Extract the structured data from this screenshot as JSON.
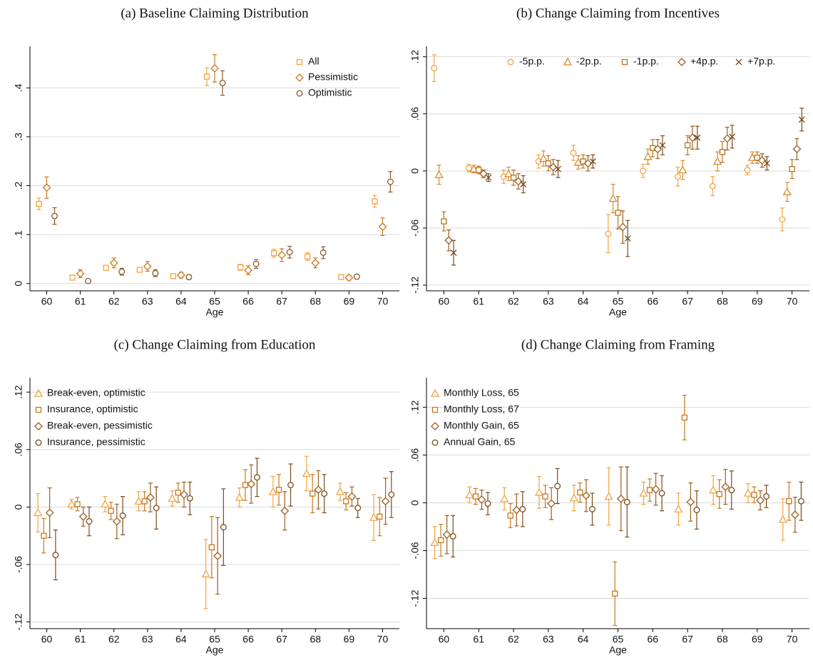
{
  "chart_data": [
    {
      "type": "errorbar",
      "title": "(a) Baseline Claiming Distribution",
      "x_label": "Age",
      "x": [
        60,
        61,
        62,
        63,
        64,
        65,
        66,
        67,
        68,
        69,
        70
      ],
      "xlim": [
        59.5,
        70.5
      ],
      "xticks": [
        60,
        61,
        62,
        63,
        64,
        65,
        66,
        67,
        68,
        69,
        70
      ],
      "ylim": [
        -0.015,
        0.485
      ],
      "yticks": [
        0,
        {
          "value": 0.1,
          "label": ".1"
        },
        {
          "value": 0.2,
          "label": ".2"
        },
        {
          "value": 0.3,
          "label": ".3"
        },
        {
          "value": 0.4,
          "label": ".4"
        }
      ],
      "grid": true,
      "legend": "top-right",
      "series": [
        {
          "name": "All",
          "color": "#f4a340",
          "marker": "square",
          "values": [
            0.163,
            0.012,
            0.032,
            0.028,
            0.015,
            0.423,
            0.033,
            0.062,
            0.055,
            0.013,
            0.168
          ],
          "errors": [
            0.012,
            0.003,
            0.005,
            0.004,
            0.003,
            0.018,
            0.006,
            0.008,
            0.008,
            0.003,
            0.012
          ]
        },
        {
          "name": "Pessimistic",
          "color": "#c8781e",
          "marker": "diamond",
          "values": [
            0.196,
            0.02,
            0.042,
            0.035,
            0.017,
            0.44,
            0.027,
            0.058,
            0.042,
            0.012,
            0.116
          ],
          "errors": [
            0.022,
            0.008,
            0.01,
            0.01,
            0.006,
            0.028,
            0.009,
            0.013,
            0.01,
            0.005,
            0.018
          ]
        },
        {
          "name": "Optimistic",
          "color": "#8c5a28",
          "marker": "circle",
          "values": [
            0.138,
            0.005,
            0.024,
            0.021,
            0.013,
            0.41,
            0.04,
            0.064,
            0.063,
            0.014,
            0.208
          ],
          "errors": [
            0.017,
            0.003,
            0.007,
            0.007,
            0.005,
            0.025,
            0.009,
            0.012,
            0.012,
            0.005,
            0.021
          ]
        }
      ]
    },
    {
      "type": "errorbar",
      "title": "(b) Change Claiming from Incentives",
      "x_label": "Age",
      "x": [
        60,
        61,
        62,
        63,
        64,
        65,
        66,
        67,
        68,
        69,
        70
      ],
      "xlim": [
        59.5,
        70.5
      ],
      "xticks": [
        60,
        61,
        62,
        63,
        64,
        65,
        66,
        67,
        68,
        69,
        70
      ],
      "ylim": [
        -0.126,
        0.131
      ],
      "yticks": [
        {
          "value": -0.12,
          "label": "-.12"
        },
        {
          "value": -0.06,
          "label": "-.06"
        },
        0,
        {
          "value": 0.06,
          "label": ".06"
        },
        {
          "value": 0.12,
          "label": ".12"
        }
      ],
      "grid": true,
      "legend": "top",
      "series": [
        {
          "name": "-5p.p.",
          "color": "#f4a340",
          "marker": "circle",
          "values": [
            0.108,
            0.003,
            -0.006,
            0.01,
            0.019,
            -0.066,
            0,
            -0.006,
            -0.016,
            0.001,
            -0.051
          ],
          "errors": [
            0.014,
            0.004,
            0.007,
            0.007,
            0.008,
            0.02,
            0.007,
            0.01,
            0.01,
            0.005,
            0.012
          ]
        },
        {
          "name": "-2p.p.",
          "color": "#d98a2a",
          "marker": "triangle",
          "values": [
            -0.004,
            0.002,
            -0.003,
            0.013,
            0.009,
            -0.029,
            0.015,
            0.001,
            0.01,
            0.014,
            -0.022
          ],
          "errors": [
            0.01,
            0.004,
            0.007,
            0.008,
            0.007,
            0.015,
            0.008,
            0.01,
            0.01,
            0.006,
            0.01
          ]
        },
        {
          "name": "-1p.p.",
          "color": "#b8731e",
          "marker": "square",
          "values": [
            -0.053,
            0.001,
            -0.007,
            0.008,
            0.01,
            -0.044,
            0.024,
            0.027,
            0.02,
            0.014,
            0.002
          ],
          "errors": [
            0.01,
            0.004,
            0.008,
            0.008,
            0.007,
            0.017,
            0.009,
            0.01,
            0.011,
            0.006,
            0.01
          ]
        },
        {
          "name": "+4p.p.",
          "color": "#9a5e1f",
          "marker": "diamond",
          "values": [
            -0.073,
            -0.003,
            -0.011,
            0.004,
            0.008,
            -0.059,
            0.023,
            0.035,
            0.034,
            0.011,
            0.023
          ],
          "errors": [
            0.011,
            0.004,
            0.008,
            0.008,
            0.008,
            0.017,
            0.01,
            0.012,
            0.012,
            0.007,
            0.011
          ]
        },
        {
          "name": "+7p.p.",
          "color": "#7a4a1a",
          "marker": "x",
          "values": [
            -0.086,
            -0.007,
            -0.014,
            0.002,
            0.01,
            -0.071,
            0.027,
            0.035,
            0.036,
            0.008,
            0.054
          ],
          "errors": [
            0.013,
            0.004,
            0.009,
            0.009,
            0.007,
            0.019,
            0.01,
            0.012,
            0.012,
            0.007,
            0.012
          ]
        }
      ]
    },
    {
      "type": "errorbar",
      "title": "(c) Change Claiming from Education",
      "x_label": "Age",
      "x": [
        60,
        61,
        62,
        63,
        64,
        65,
        66,
        67,
        68,
        69,
        70
      ],
      "xlim": [
        59.5,
        70.5
      ],
      "xticks": [
        60,
        61,
        62,
        63,
        64,
        65,
        66,
        67,
        68,
        69,
        70
      ],
      "ylim": [
        -0.127,
        0.135
      ],
      "yticks": [
        {
          "value": -0.12,
          "label": "-.12"
        },
        {
          "value": -0.06,
          "label": "-.06"
        },
        0,
        {
          "value": 0.06,
          "label": ".06"
        },
        {
          "value": 0.12,
          "label": ".12"
        }
      ],
      "grid": true,
      "legend": "top-left",
      "series": [
        {
          "name": "Break-even, optimistic",
          "color": "#f4a340",
          "marker": "triangle",
          "values": [
            -0.006,
            0.003,
            0.003,
            0.006,
            0.009,
            -0.07,
            0.01,
            0.016,
            0.035,
            0.016,
            -0.011
          ],
          "errors": [
            0.02,
            0.005,
            0.008,
            0.01,
            0.008,
            0.036,
            0.01,
            0.016,
            0.018,
            0.009,
            0.024
          ]
        },
        {
          "name": "Insurance, optimistic",
          "color": "#c8781e",
          "marker": "square",
          "values": [
            -0.03,
            0.003,
            -0.004,
            0.006,
            0.015,
            -0.042,
            0.023,
            0.018,
            0.014,
            0.006,
            -0.01
          ],
          "errors": [
            0.018,
            0.007,
            0.009,
            0.01,
            0.01,
            0.032,
            0.016,
            0.016,
            0.02,
            0.009,
            0.02
          ]
        },
        {
          "name": "Break-even, pessimistic",
          "color": "#9a5e1f",
          "marker": "diamond",
          "values": [
            -0.006,
            -0.01,
            -0.015,
            0.01,
            0.013,
            -0.051,
            0.024,
            -0.004,
            0.018,
            0.011,
            0.006
          ],
          "errors": [
            0.026,
            0.01,
            0.018,
            0.015,
            0.013,
            0.04,
            0.02,
            0.02,
            0.02,
            0.01,
            0.024
          ]
        },
        {
          "name": "Insurance, pessimistic",
          "color": "#7a4a1a",
          "marker": "circle",
          "values": [
            -0.05,
            -0.015,
            -0.009,
            -0.001,
            0.009,
            -0.021,
            0.031,
            0.023,
            0.014,
            -0.001,
            0.013
          ],
          "errors": [
            0.026,
            0.015,
            0.02,
            0.022,
            0.017,
            0.04,
            0.02,
            0.022,
            0.02,
            0.01,
            0.024
          ]
        }
      ]
    },
    {
      "type": "errorbar",
      "title": "(d) Change Claiming from Framing",
      "x_label": "Age",
      "x": [
        60,
        61,
        62,
        63,
        64,
        65,
        66,
        67,
        68,
        69,
        70
      ],
      "xlim": [
        59.5,
        70.5
      ],
      "xticks": [
        60,
        61,
        62,
        63,
        64,
        65,
        66,
        67,
        68,
        69,
        70
      ],
      "ylim": [
        -0.158,
        0.157
      ],
      "yticks": [
        {
          "value": -0.12,
          "label": "-.12"
        },
        {
          "value": -0.06,
          "label": "-.06"
        },
        0,
        {
          "value": 0.06,
          "label": ".06"
        },
        {
          "value": 0.12,
          "label": ".12"
        }
      ],
      "grid": true,
      "legend": "top-left",
      "series": [
        {
          "name": "Monthly Loss, 65",
          "color": "#f4a340",
          "marker": "triangle",
          "values": [
            -0.05,
            0.01,
            0.005,
            0.013,
            0.006,
            0.008,
            0.012,
            -0.008,
            0.016,
            0.012,
            -0.021
          ],
          "errors": [
            0.02,
            0.01,
            0.014,
            0.02,
            0.016,
            0.036,
            0.014,
            0.02,
            0.018,
            0.012,
            0.026
          ]
        },
        {
          "name": "Monthly Loss, 67",
          "color": "#c8781e",
          "marker": "square",
          "values": [
            -0.047,
            0.008,
            -0.016,
            0.008,
            0.013,
            -0.114,
            0.016,
            0.107,
            0.011,
            0.01,
            0.002
          ],
          "errors": [
            0.02,
            0.01,
            0.015,
            0.014,
            0.012,
            0.04,
            0.014,
            0.028,
            0.018,
            0.01,
            0.024
          ]
        },
        {
          "name": "Monthly Gain, 65",
          "color": "#9a5e1f",
          "marker": "diamond",
          "values": [
            -0.04,
            0.004,
            -0.009,
            -0.001,
            0.009,
            0.005,
            0.017,
            0.001,
            0.02,
            0.003,
            -0.015
          ],
          "errors": [
            0.024,
            0.012,
            0.02,
            0.02,
            0.02,
            0.04,
            0.02,
            0.024,
            0.022,
            0.012,
            0.022
          ]
        },
        {
          "name": "Annual Gain, 65",
          "color": "#7a4a1a",
          "marker": "circle",
          "values": [
            -0.042,
            -0.001,
            -0.008,
            0.021,
            -0.008,
            0.001,
            0.012,
            -0.009,
            0.016,
            0.008,
            0.002
          ],
          "errors": [
            0.026,
            0.014,
            0.022,
            0.022,
            0.02,
            0.044,
            0.022,
            0.024,
            0.024,
            0.014,
            0.024
          ]
        }
      ]
    }
  ]
}
